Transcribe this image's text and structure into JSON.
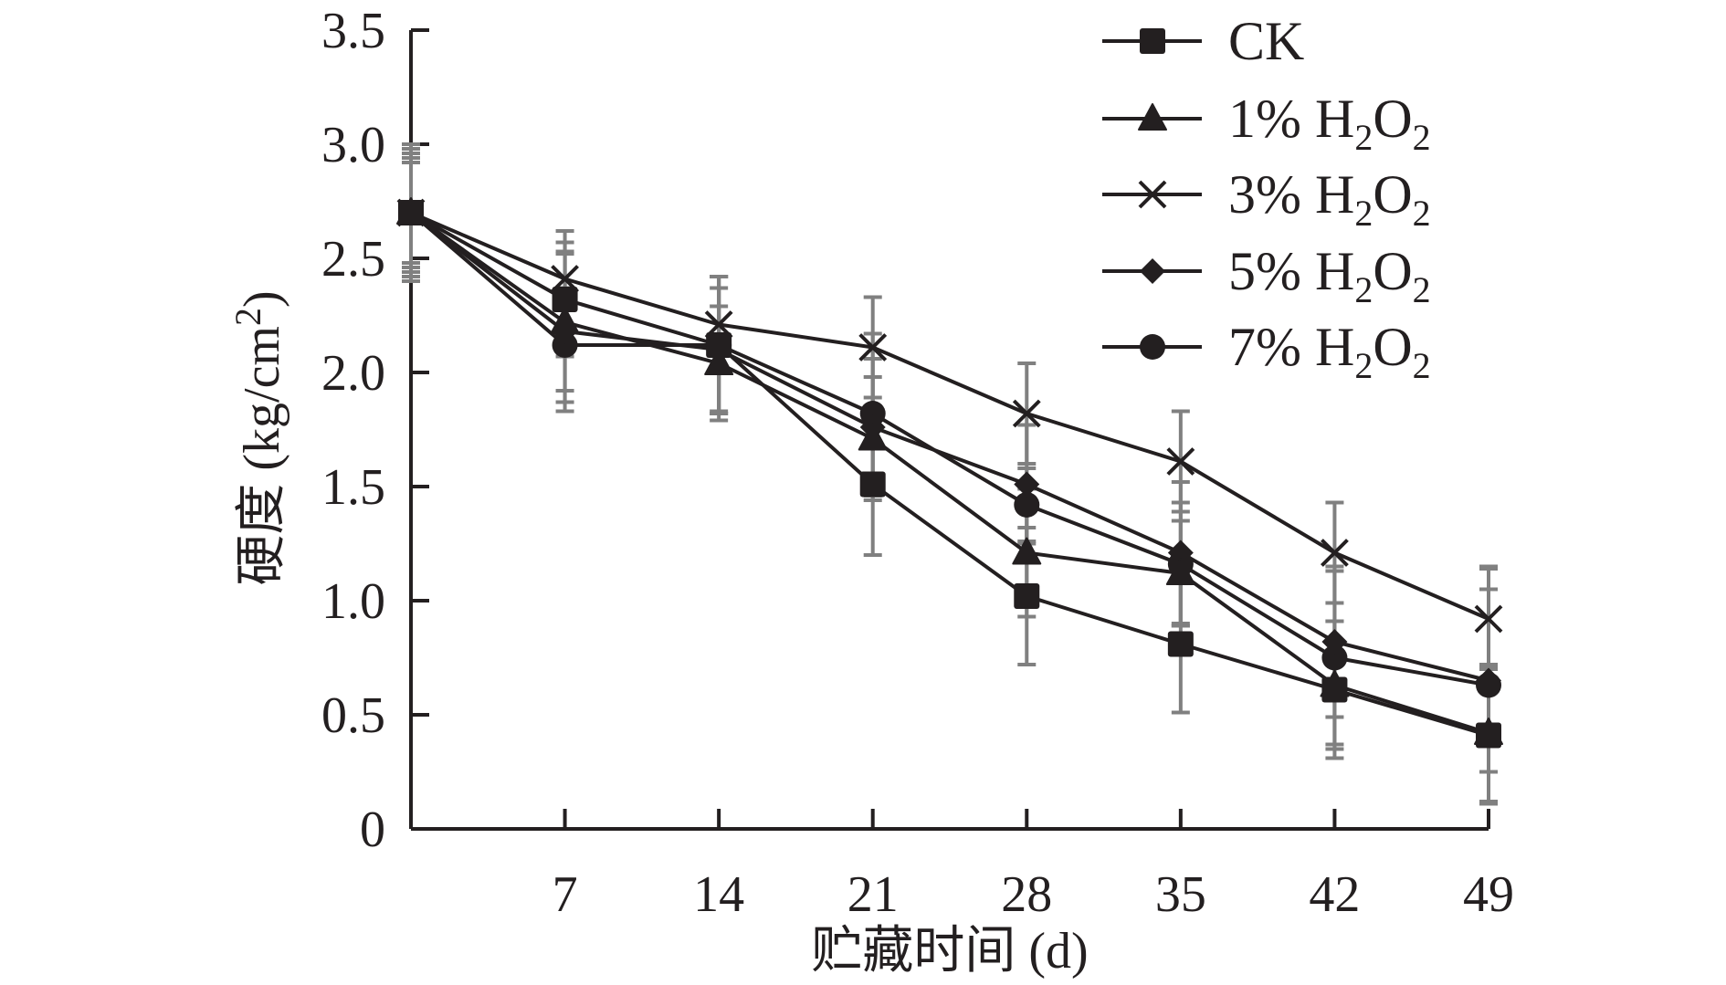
{
  "chart_data": {
    "type": "line",
    "title": "",
    "xlabel": "贮藏时间 (d)",
    "ylabel": "硬度 (kg/cm²)",
    "ylabel_parts": {
      "main": "硬度 (kg/cm",
      "sup": "2",
      "close": ")"
    },
    "xlim": [
      0,
      49
    ],
    "ylim": [
      0,
      3.5
    ],
    "x": [
      0,
      7,
      14,
      21,
      28,
      35,
      42,
      49
    ],
    "x_ticks": [
      7,
      14,
      21,
      28,
      35,
      42,
      49
    ],
    "x_tick_labels": [
      "7",
      "14",
      "21",
      "28",
      "35",
      "42",
      "49"
    ],
    "y_ticks": [
      0,
      0.5,
      1.0,
      1.5,
      2.0,
      2.5,
      3.0,
      3.5
    ],
    "y_tick_labels": [
      "0",
      "0.5",
      "1.0",
      "1.5",
      "2.0",
      "2.5",
      "3.0",
      "3.5"
    ],
    "grid": false,
    "legend_position": "top-right",
    "error_bar_color": "#808080",
    "line_color": "#231f20",
    "series": [
      {
        "name": "CK",
        "label_parts": {
          "pre": "CK",
          "sub1": "",
          "mid": "",
          "sub2": ""
        },
        "marker": "square",
        "values": [
          2.7,
          2.32,
          2.12,
          1.51,
          1.02,
          0.81,
          0.61,
          0.41
        ],
        "errors": [
          0.3,
          0.25,
          0.3,
          0.31,
          0.3,
          0.3,
          0.3,
          0.3
        ]
      },
      {
        "name": "1% H2O2",
        "label_parts": {
          "pre": "1% H",
          "sub1": "2",
          "mid": "O",
          "sub2": "2"
        },
        "marker": "triangle",
        "values": [
          2.7,
          2.22,
          2.04,
          1.71,
          1.21,
          1.12,
          0.63,
          0.42
        ],
        "errors": [
          0.28,
          0.3,
          0.25,
          0.27,
          0.28,
          0.23,
          0.28,
          0.3
        ]
      },
      {
        "name": "3% H2O2",
        "label_parts": {
          "pre": "3% H",
          "sub1": "2",
          "mid": "O",
          "sub2": "2"
        },
        "marker": "x",
        "values": [
          2.7,
          2.41,
          2.21,
          2.11,
          1.82,
          1.61,
          1.21,
          0.92
        ],
        "errors": [
          0.22,
          0.21,
          0.21,
          0.22,
          0.22,
          0.22,
          0.22,
          0.22
        ]
      },
      {
        "name": "5% H2O2",
        "label_parts": {
          "pre": "5% H",
          "sub1": "2",
          "mid": "O",
          "sub2": "2"
        },
        "marker": "diamond",
        "values": [
          2.7,
          2.18,
          2.1,
          1.76,
          1.51,
          1.21,
          0.82,
          0.65
        ],
        "errors": [
          0.26,
          0.35,
          0.27,
          0.3,
          0.26,
          0.31,
          0.33,
          0.4
        ]
      },
      {
        "name": "7% H2O2",
        "label_parts": {
          "pre": "7% H",
          "sub1": "2",
          "mid": "O",
          "sub2": "2"
        },
        "marker": "circle",
        "values": [
          2.7,
          2.12,
          2.12,
          1.82,
          1.42,
          1.16,
          0.75,
          0.63
        ],
        "errors": [
          0.24,
          0.25,
          0.3,
          0.35,
          0.16,
          0.27,
          0.38,
          0.52
        ]
      }
    ]
  }
}
